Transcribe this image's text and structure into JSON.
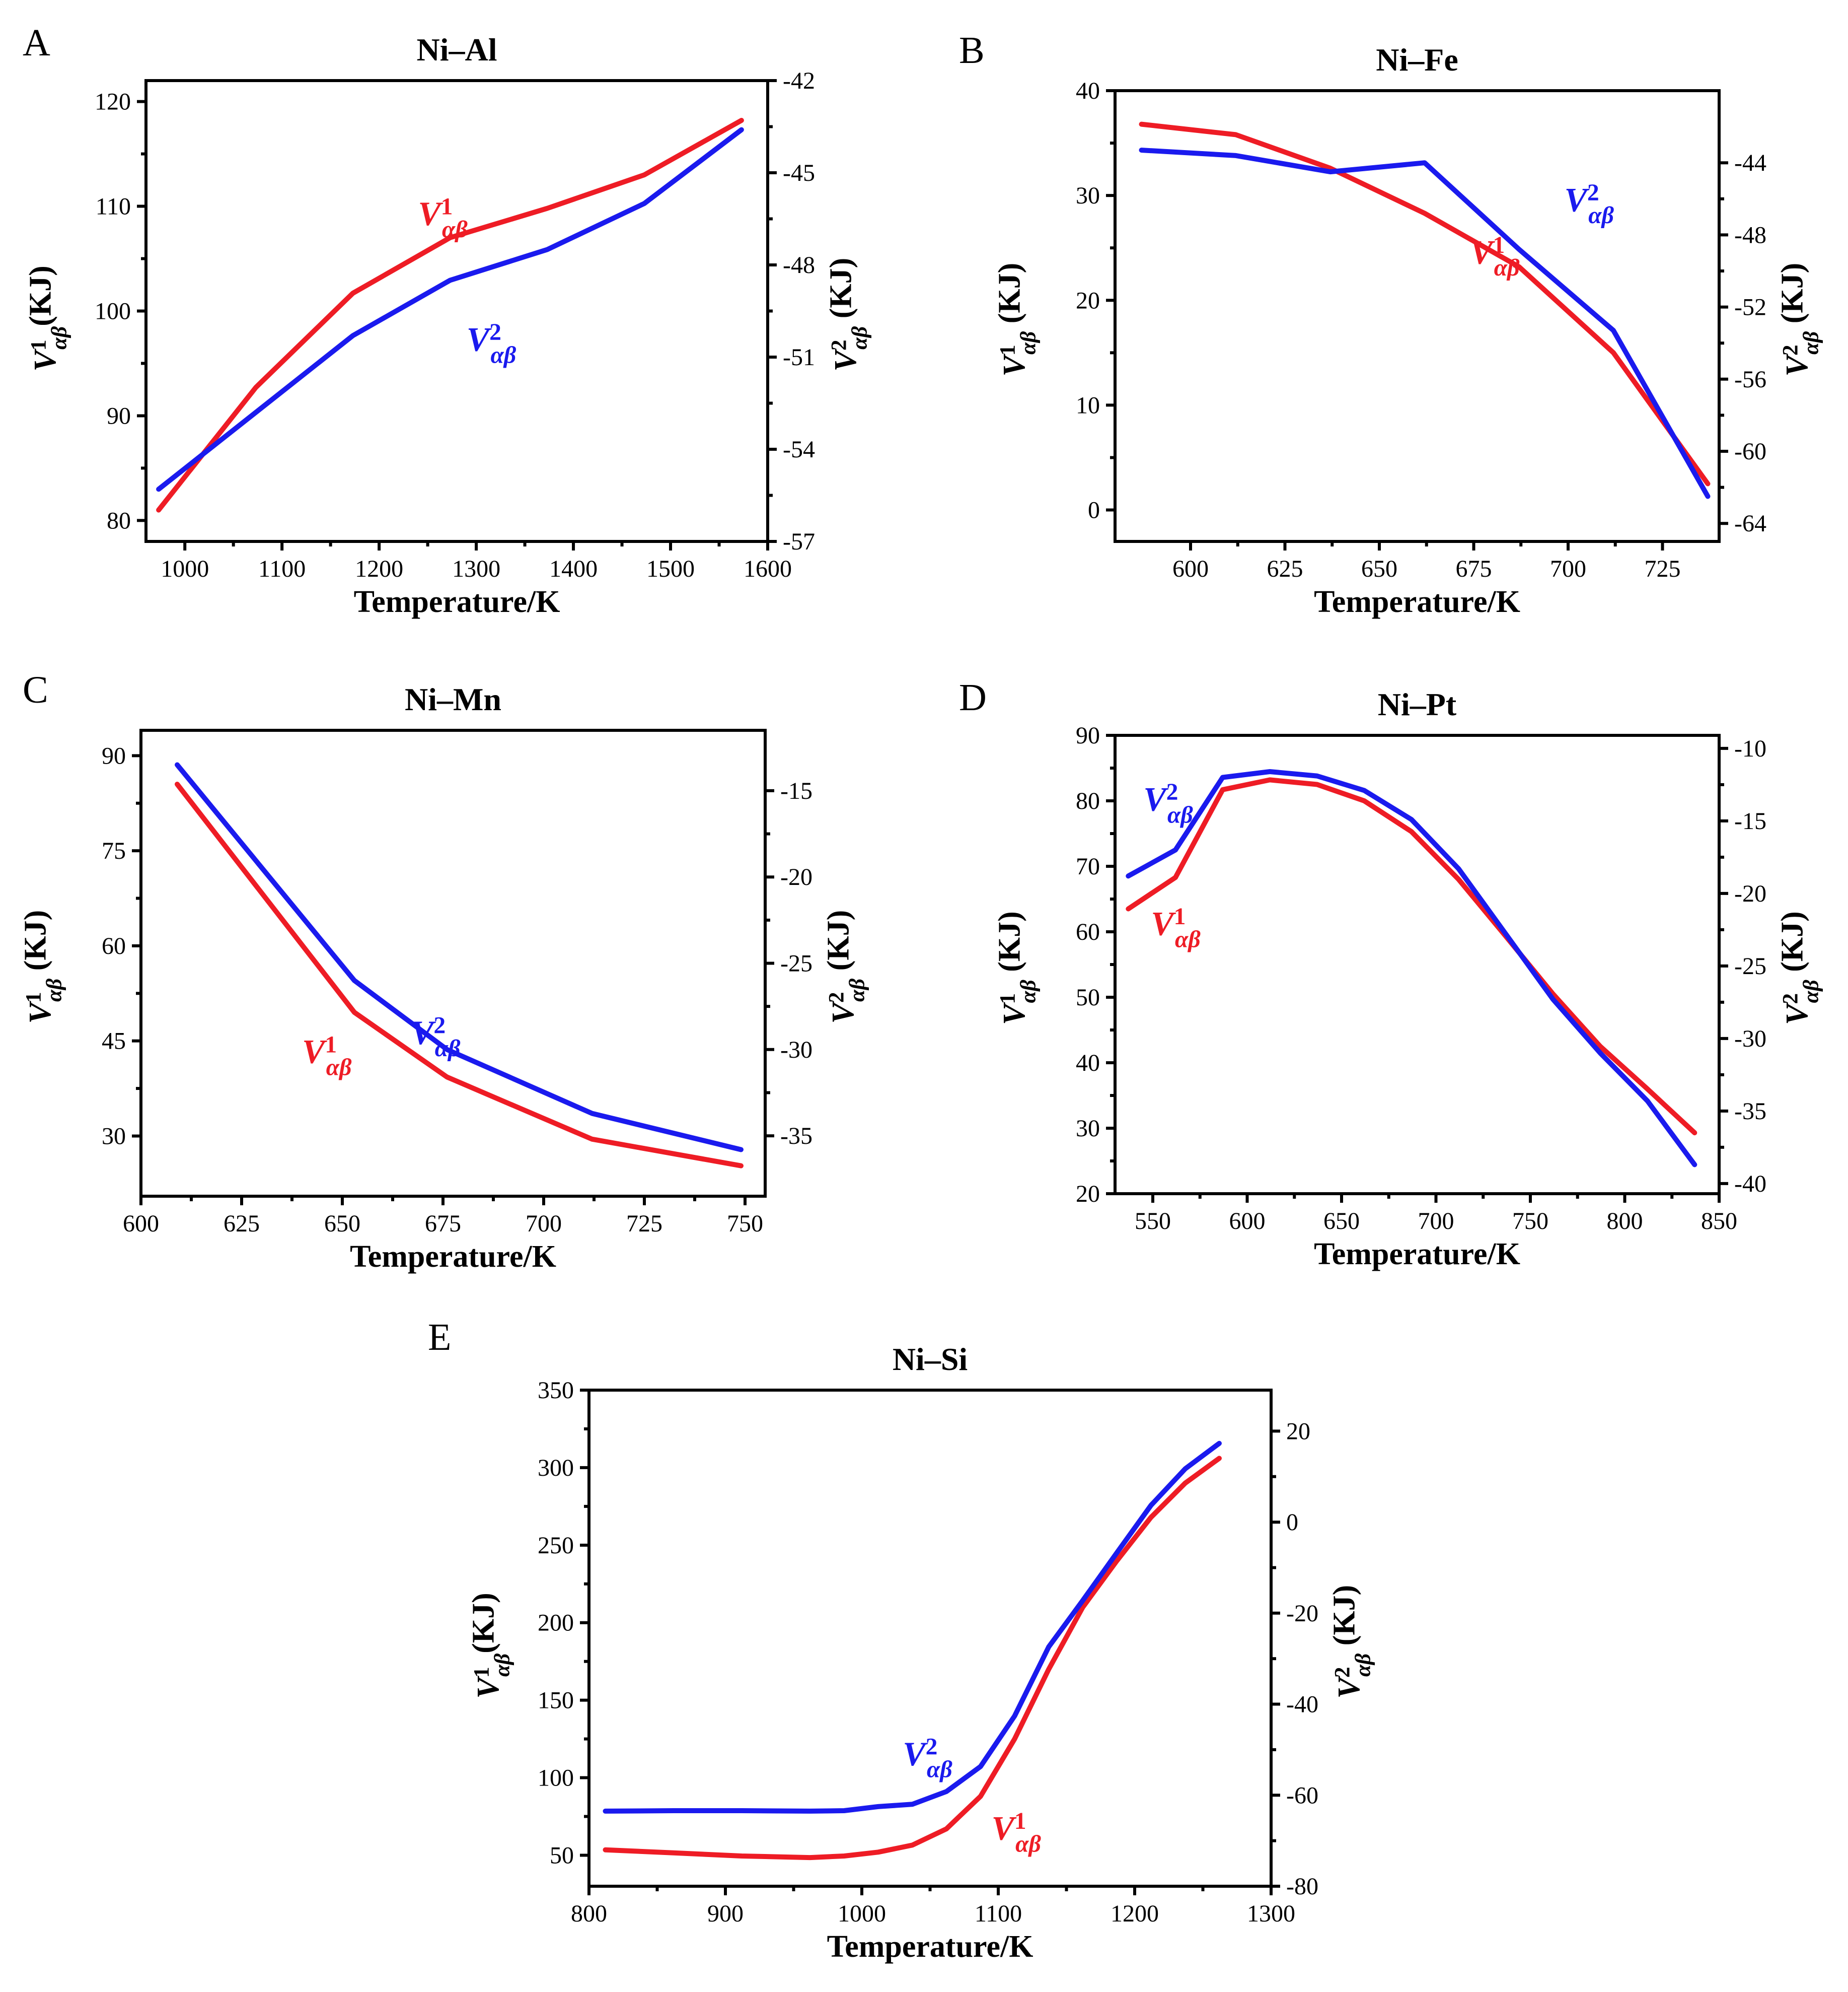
{
  "colors": {
    "v1": "#ee1c25",
    "v2": "#1a1aee",
    "axis": "#000000"
  },
  "chart_data": [
    {
      "panel": "A",
      "type": "line",
      "title": "Ni–Al",
      "xlabel": "Temperature/K",
      "ylabel_left": "V¹αβ(KJ)",
      "ylabel_right": "V²αβ (KJ)",
      "xlim": [
        960,
        1600
      ],
      "ylim_left": [
        78,
        122
      ],
      "ylim_right": [
        -57,
        -42
      ],
      "xticks": [
        1000,
        1100,
        1200,
        1300,
        1400,
        1500,
        1600
      ],
      "yticks_left": [
        80,
        90,
        100,
        110,
        120
      ],
      "yticks_right": [
        -57,
        -54,
        -51,
        -48,
        -45,
        -42
      ],
      "series": [
        {
          "name": "V¹αβ",
          "axis": "left",
          "color": "#ee1c25",
          "x": [
            973,
            1073,
            1173,
            1273,
            1373,
            1473,
            1573
          ],
          "y": [
            81,
            92.7,
            101.7,
            107,
            109.8,
            113,
            118.2
          ]
        },
        {
          "name": "V²αβ",
          "axis": "right",
          "color": "#1a1aee",
          "x": [
            973,
            1073,
            1173,
            1273,
            1373,
            1473,
            1573
          ],
          "y": [
            -55.3,
            -52.8,
            -50.3,
            -48.5,
            -47.5,
            -46.0,
            -43.6
          ]
        }
      ],
      "labels": [
        {
          "series": 0,
          "x": 1240,
          "y": 108.2,
          "text": "V¹αβ"
        },
        {
          "series": 1,
          "x": 1290,
          "y": 96.2,
          "text": "V²αβ"
        }
      ]
    },
    {
      "panel": "B",
      "type": "line",
      "title": "Ni–Fe",
      "xlabel": "Temperature/K",
      "ylabel_left": "V¹αβ (KJ)",
      "ylabel_right": "V²αβ (KJ)",
      "xlim": [
        580,
        740
      ],
      "ylim_left": [
        -3,
        40
      ],
      "ylim_right": [
        -65,
        -40
      ],
      "xticks": [
        600,
        625,
        650,
        675,
        700,
        725
      ],
      "yticks_left": [
        0,
        10,
        20,
        30,
        40
      ],
      "yticks_right": [
        -64,
        -60,
        -56,
        -52,
        -48,
        -44
      ],
      "series": [
        {
          "name": "V¹αβ",
          "axis": "left",
          "color": "#ee1c25",
          "x": [
            587,
            612,
            637,
            662,
            687,
            712,
            737
          ],
          "y": [
            36.8,
            35.8,
            32.6,
            28.3,
            23.2,
            15.0,
            2.5
          ]
        },
        {
          "name": "V²αβ",
          "axis": "right",
          "color": "#1a1aee",
          "x": [
            587,
            612,
            637,
            662,
            687,
            712,
            737
          ],
          "y": [
            -43.3,
            -43.6,
            -44.5,
            -44.0,
            -48.8,
            -53.3,
            -62.5
          ]
        }
      ],
      "labels": [
        {
          "series": 0,
          "x": 674,
          "y": 23.5,
          "text": "V¹αβ"
        },
        {
          "series": 1,
          "x": 699,
          "y": 28.5,
          "text": "V²αβ"
        }
      ]
    },
    {
      "panel": "C",
      "type": "line",
      "title": "Ni–Mn",
      "xlabel": "Temperature/K",
      "ylabel_left": "V¹αβ (KJ)",
      "ylabel_right": "V²αβ (KJ)",
      "xlim": [
        600,
        755
      ],
      "ylim_left": [
        20.5,
        94
      ],
      "ylim_right": [
        -38.5,
        -11.5
      ],
      "xticks": [
        600,
        625,
        650,
        675,
        700,
        725,
        750
      ],
      "yticks_left": [
        30,
        45,
        60,
        75,
        90
      ],
      "yticks_right": [
        -35,
        -30,
        -25,
        -20,
        -15
      ],
      "series": [
        {
          "name": "V¹αβ",
          "axis": "left",
          "color": "#ee1c25",
          "x": [
            609,
            653,
            676,
            712,
            749
          ],
          "y": [
            85.5,
            49.5,
            39.3,
            29.5,
            25.3
          ]
        },
        {
          "name": "V²αβ",
          "axis": "right",
          "color": "#1a1aee",
          "x": [
            609,
            653,
            676,
            712,
            749
          ],
          "y": [
            -13.5,
            -26.0,
            -30.0,
            -33.7,
            -35.8
          ]
        }
      ],
      "labels": [
        {
          "series": 0,
          "x": 640,
          "y": 41.5,
          "text": "V¹αβ"
        },
        {
          "series": 1,
          "x": 667,
          "y": 44.5,
          "text": "V²αβ"
        }
      ]
    },
    {
      "panel": "D",
      "type": "line",
      "title": "Ni–Pt",
      "xlabel": "Temperature/K",
      "ylabel_left": "V¹αβ (KJ)",
      "ylabel_right": "V²αβ (KJ)",
      "xlim": [
        530,
        850
      ],
      "ylim_left": [
        20,
        90
      ],
      "ylim_right": [
        -40.7,
        -9.1
      ],
      "xticks": [
        550,
        600,
        650,
        700,
        750,
        800,
        850
      ],
      "yticks_left": [
        20,
        30,
        40,
        50,
        60,
        70,
        80,
        90
      ],
      "yticks_right": [
        -40,
        -35,
        -30,
        -25,
        -20,
        -15,
        -10
      ],
      "series": [
        {
          "name": "V¹αβ",
          "axis": "left",
          "color": "#ee1c25",
          "x": [
            537,
            562,
            587,
            612,
            637,
            662,
            687,
            712,
            737,
            762,
            787,
            812,
            837
          ],
          "y": [
            63.5,
            68.3,
            81.7,
            83.2,
            82.5,
            80.0,
            75.3,
            68.0,
            59.3,
            50.5,
            42.5,
            36.0,
            29.3
          ]
        },
        {
          "name": "V²αβ",
          "axis": "right",
          "color": "#1a1aee",
          "x": [
            537,
            562,
            587,
            612,
            637,
            662,
            687,
            712,
            737,
            762,
            787,
            812,
            837
          ],
          "y": [
            -18.8,
            -17.0,
            -12.0,
            -11.6,
            -11.9,
            -12.9,
            -14.9,
            -18.3,
            -22.8,
            -27.3,
            -31.0,
            -34.3,
            -38.7
          ]
        }
      ],
      "labels": [
        {
          "series": 0,
          "x": 549,
          "y": 59.5,
          "text": "V¹αβ"
        },
        {
          "series": 1,
          "x": 545,
          "y": 78.5,
          "text": "V²αβ"
        }
      ]
    },
    {
      "panel": "E",
      "type": "line",
      "title": "Ni–Si",
      "xlabel": "Temperature/K",
      "ylabel_left": "V¹αβ(KJ)",
      "ylabel_right": "V²αβ (KJ)",
      "xlim": [
        800,
        1300
      ],
      "ylim_left": [
        30,
        350
      ],
      "ylim_right": [
        -80,
        29
      ],
      "xticks": [
        800,
        900,
        1000,
        1100,
        1200,
        1300
      ],
      "yticks_left": [
        50,
        100,
        150,
        200,
        250,
        300,
        350
      ],
      "yticks_right": [
        -80,
        -60,
        -40,
        -20,
        0,
        20
      ],
      "series": [
        {
          "name": "V¹αβ",
          "axis": "left",
          "color": "#ee1c25",
          "x": [
            812,
            862,
            912,
            962,
            987,
            1012,
            1037,
            1062,
            1087,
            1112,
            1137,
            1162,
            1187,
            1212,
            1237,
            1262
          ],
          "y": [
            53.5,
            51.5,
            49.5,
            48.5,
            49.5,
            52.0,
            56.5,
            67.0,
            88.0,
            125.0,
            170.0,
            210.0,
            240.0,
            268.0,
            290.0,
            306.0
          ]
        },
        {
          "name": "V²αβ",
          "axis": "right",
          "color": "#1a1aee",
          "x": [
            812,
            862,
            912,
            962,
            987,
            1012,
            1037,
            1062,
            1087,
            1112,
            1137,
            1162,
            1187,
            1212,
            1237,
            1262
          ],
          "y": [
            -63.5,
            -63.4,
            -63.4,
            -63.5,
            -63.4,
            -62.5,
            -62.0,
            -59.2,
            -53.7,
            -42.6,
            -27.4,
            -17.2,
            -6.7,
            3.7,
            11.7,
            17.3
          ]
        }
      ],
      "labels": [
        {
          "series": 0,
          "x": 1095,
          "y": 60.0,
          "text": "V¹αβ"
        },
        {
          "series": 1,
          "x": 1030,
          "y": 108.0,
          "text": "V²αβ"
        }
      ]
    }
  ]
}
